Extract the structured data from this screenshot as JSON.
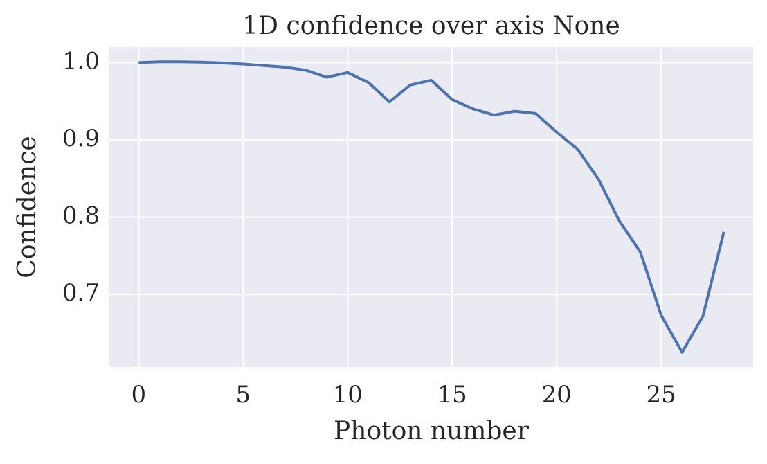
{
  "chart_data": {
    "type": "line",
    "title": "1D confidence over axis None",
    "xlabel": "Photon number",
    "ylabel": "Confidence",
    "x": [
      0,
      1,
      2,
      3,
      4,
      5,
      6,
      7,
      8,
      9,
      10,
      11,
      12,
      13,
      14,
      15,
      16,
      17,
      18,
      19,
      20,
      21,
      22,
      23,
      24,
      25,
      26,
      27,
      28
    ],
    "series": [
      {
        "color": "#4c72b0",
        "values": [
          1.0,
          1.001,
          1.001,
          1.0005,
          0.9995,
          0.998,
          0.996,
          0.994,
          0.99,
          0.981,
          0.987,
          0.974,
          0.949,
          0.971,
          0.977,
          0.952,
          0.94,
          0.932,
          0.937,
          0.934,
          0.91,
          0.888,
          0.849,
          0.795,
          0.755,
          0.673,
          0.625,
          0.672,
          0.781
        ]
      }
    ],
    "xlim": [
      -1.4,
      29.4
    ],
    "ylim": [
      0.606,
      1.02
    ],
    "xticks": [
      0,
      5,
      10,
      15,
      20,
      25
    ],
    "yticks": [
      {
        "value": 0.7,
        "label": "0.7"
      },
      {
        "value": 0.8,
        "label": "0.8"
      },
      {
        "value": 0.9,
        "label": "0.9"
      },
      {
        "value": 1.0,
        "label": "1.0"
      }
    ],
    "grid": true
  }
}
